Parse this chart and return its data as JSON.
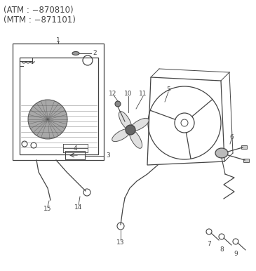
{
  "title_line1": "(ATM : −870810)",
  "title_line2": "(MTM : −871101)",
  "bg_color": "#ffffff",
  "text_color": "#444444",
  "line_color": "#444444",
  "title_fontsize": 8.5,
  "label_fontsize": 6.5
}
